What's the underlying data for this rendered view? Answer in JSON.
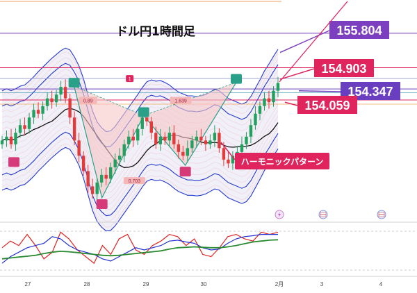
{
  "chart_data": {
    "type": "candlestick",
    "title": "ドル円1時間足",
    "x_ticks": [
      "27",
      "28",
      "29",
      "30",
      "2月",
      "3",
      "4"
    ],
    "price_levels": [
      {
        "value": 155.804,
        "label": "155.804",
        "color": "#7b3fbf"
      },
      {
        "value": 154.903,
        "label": "154.903",
        "color": "#e0245e"
      },
      {
        "value": 154.347,
        "label": "154.347",
        "color": "#6a3fbf"
      },
      {
        "value": 154.059,
        "label": "154.059",
        "color": "#e0245e"
      }
    ],
    "fib_labels": [
      "0.89",
      "1.639",
      "0.703",
      "1"
    ],
    "annotation": "ハーモニックパターン",
    "harmonic_points": [
      {
        "t": 27.6,
        "p": 154.42
      },
      {
        "t": 28.2,
        "p": 151.5
      },
      {
        "t": 29.1,
        "p": 153.65
      },
      {
        "t": 30.0,
        "p": 152.35
      },
      {
        "t": 31.1,
        "p": 154.52
      }
    ],
    "close": [
      153.0,
      153.1,
      152.9,
      153.2,
      153.4,
      153.3,
      153.6,
      153.8,
      153.7,
      153.9,
      154.1,
      154.0,
      154.2,
      154.4,
      154.1,
      153.6,
      153.0,
      152.6,
      152.2,
      151.8,
      151.6,
      151.9,
      152.1,
      152.0,
      152.3,
      152.5,
      152.6,
      152.9,
      153.1,
      153.0,
      153.3,
      153.6,
      153.5,
      153.2,
      152.9,
      153.1,
      153.0,
      153.2,
      152.9,
      152.7,
      152.6,
      152.8,
      153.0,
      153.1,
      153.0,
      152.9,
      153.0,
      153.2,
      152.8,
      152.5,
      152.4,
      152.6,
      152.7,
      152.9,
      153.1,
      153.4,
      153.7,
      153.9,
      154.1,
      154.0,
      154.3,
      154.5
    ],
    "oscillator": {
      "red": [
        55,
        70,
        60,
        85,
        60,
        30,
        45,
        90,
        75,
        50,
        35,
        20,
        60,
        40,
        75,
        85,
        50,
        40,
        60,
        70,
        85,
        80,
        60,
        75,
        40,
        35,
        55,
        80,
        85,
        75,
        70,
        90,
        85,
        90
      ],
      "blue": [
        20,
        35,
        45,
        55,
        60,
        65,
        80,
        75,
        60,
        50,
        45,
        40,
        30,
        25,
        35,
        45,
        55,
        50,
        55,
        60,
        70,
        72,
        68,
        65,
        55,
        50,
        52,
        65,
        75,
        80,
        82,
        85,
        85,
        85
      ],
      "green": [
        30,
        32,
        34,
        36,
        38,
        42,
        45,
        47,
        46,
        44,
        42,
        40,
        38,
        37,
        38,
        40,
        42,
        44,
        46,
        48,
        52,
        55,
        56,
        57,
        56,
        55,
        55,
        57,
        60,
        64,
        68,
        70,
        72,
        73
      ]
    },
    "event_icons": [
      "lightning-icon",
      "us-flag-icon",
      "us-flag-icon"
    ]
  }
}
